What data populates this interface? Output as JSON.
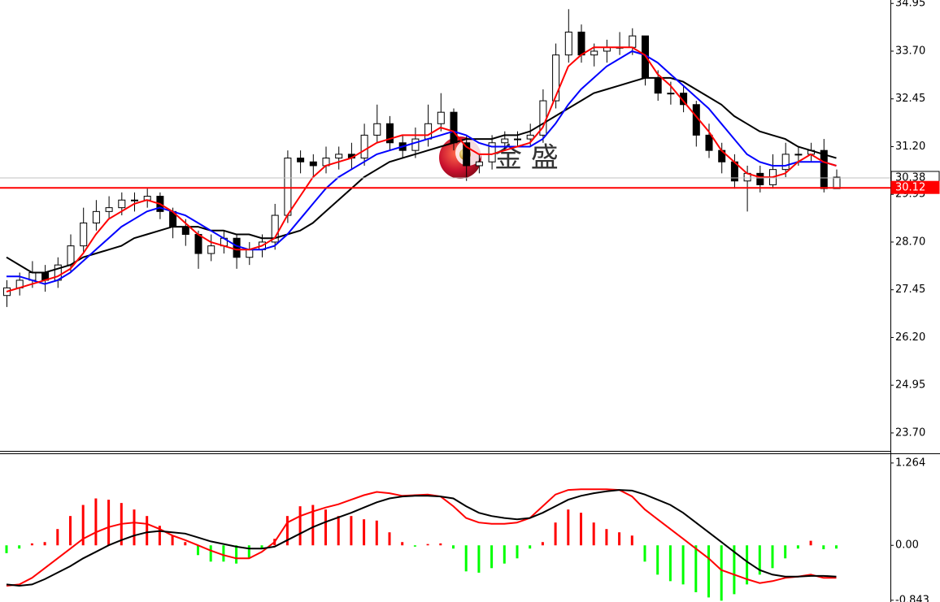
{
  "chart_data": [
    {
      "type": "candlestick",
      "watermark": "金 盛",
      "up_color": "#ffffff",
      "down_color": "#000000",
      "open": [
        27.3,
        27.5,
        27.7,
        27.9,
        27.7,
        28.1,
        28.6,
        29.2,
        29.5,
        29.6,
        29.8,
        29.8,
        29.9,
        29.5,
        29.1,
        28.9,
        28.4,
        28.6,
        28.8,
        28.3,
        28.5,
        28.7,
        29.4,
        30.9,
        30.8,
        30.7,
        30.9,
        31.0,
        30.9,
        31.5,
        31.8,
        31.3,
        31.1,
        31.4,
        31.8,
        32.1,
        31.3,
        30.7,
        30.8,
        31.3,
        31.4,
        31.4,
        31.5,
        32.4,
        33.6,
        34.2,
        33.6,
        33.7,
        33.8,
        33.8,
        34.1,
        33.0,
        32.6,
        32.6,
        32.3,
        31.5,
        31.1,
        30.8,
        30.3,
        30.5,
        30.2,
        30.6,
        31.0,
        31.0,
        31.1,
        30.1
      ],
      "high": [
        27.7,
        27.9,
        28.2,
        28.1,
        28.3,
        28.9,
        29.6,
        29.8,
        29.9,
        30.0,
        30.0,
        30.1,
        30.0,
        29.6,
        29.3,
        29.0,
        28.9,
        29.0,
        28.9,
        28.7,
        28.9,
        29.7,
        31.1,
        31.1,
        31.0,
        31.2,
        31.2,
        31.3,
        31.8,
        32.3,
        32.0,
        31.5,
        31.7,
        32.3,
        32.6,
        32.2,
        31.5,
        31.0,
        31.5,
        31.6,
        31.6,
        31.8,
        32.7,
        33.9,
        34.8,
        34.4,
        33.9,
        34.0,
        34.2,
        34.3,
        34.1,
        33.2,
        32.9,
        32.8,
        32.4,
        31.8,
        31.3,
        31.0,
        30.7,
        30.7,
        31.0,
        31.3,
        31.2,
        31.3,
        31.4,
        30.6
      ],
      "low": [
        27.0,
        27.3,
        27.5,
        27.4,
        27.5,
        27.9,
        28.4,
        29.0,
        29.3,
        29.4,
        29.5,
        29.6,
        29.3,
        28.8,
        28.6,
        28.0,
        28.2,
        28.4,
        28.0,
        28.1,
        28.3,
        28.5,
        29.2,
        30.5,
        30.4,
        30.5,
        30.6,
        30.6,
        30.7,
        31.3,
        31.1,
        30.9,
        30.9,
        31.2,
        31.6,
        31.1,
        30.3,
        30.5,
        30.6,
        31.1,
        31.2,
        31.2,
        31.3,
        32.2,
        33.4,
        33.4,
        33.3,
        33.4,
        33.6,
        33.6,
        32.8,
        32.4,
        32.3,
        32.1,
        31.2,
        30.9,
        30.5,
        30.1,
        29.5,
        30.0,
        30.1,
        30.4,
        30.7,
        30.8,
        30.0,
        30.1
      ],
      "close": [
        27.5,
        27.7,
        27.9,
        27.7,
        28.1,
        28.6,
        29.2,
        29.5,
        29.6,
        29.8,
        29.8,
        29.9,
        29.5,
        29.1,
        28.9,
        28.4,
        28.6,
        28.8,
        28.3,
        28.5,
        28.7,
        29.4,
        30.9,
        30.8,
        30.7,
        30.9,
        31.0,
        30.9,
        31.5,
        31.8,
        31.3,
        31.1,
        31.4,
        31.8,
        32.1,
        31.3,
        30.7,
        30.8,
        31.3,
        31.4,
        31.4,
        31.5,
        32.4,
        33.6,
        34.2,
        33.6,
        33.7,
        33.8,
        33.8,
        34.1,
        33.0,
        32.6,
        32.6,
        32.3,
        31.5,
        31.1,
        30.8,
        30.3,
        30.5,
        30.2,
        30.6,
        31.0,
        31.0,
        31.1,
        30.1,
        30.4
      ],
      "series": [
        {
          "color": "#000000",
          "values": [
            28.3,
            28.1,
            27.9,
            27.9,
            28.0,
            28.1,
            28.3,
            28.4,
            28.5,
            28.6,
            28.8,
            28.9,
            29.0,
            29.1,
            29.1,
            29.1,
            29.0,
            29.0,
            28.9,
            28.9,
            28.8,
            28.8,
            28.9,
            29.0,
            29.2,
            29.5,
            29.8,
            30.1,
            30.4,
            30.6,
            30.8,
            30.9,
            31.0,
            31.1,
            31.2,
            31.3,
            31.4,
            31.4,
            31.4,
            31.5,
            31.5,
            31.6,
            31.8,
            32.0,
            32.2,
            32.4,
            32.6,
            32.7,
            32.8,
            32.9,
            33.0,
            33.0,
            33.0,
            32.9,
            32.7,
            32.5,
            32.3,
            32.0,
            31.8,
            31.6,
            31.5,
            31.4,
            31.2,
            31.1,
            31.0,
            30.9
          ]
        },
        {
          "color": "#0000ff",
          "values": [
            27.8,
            27.8,
            27.7,
            27.6,
            27.7,
            27.9,
            28.2,
            28.5,
            28.8,
            29.1,
            29.3,
            29.5,
            29.6,
            29.5,
            29.4,
            29.2,
            29.0,
            28.8,
            28.6,
            28.5,
            28.5,
            28.6,
            28.9,
            29.3,
            29.7,
            30.1,
            30.4,
            30.6,
            30.8,
            31.0,
            31.1,
            31.2,
            31.3,
            31.4,
            31.5,
            31.6,
            31.5,
            31.3,
            31.2,
            31.2,
            31.2,
            31.2,
            31.4,
            31.8,
            32.3,
            32.7,
            33.0,
            33.3,
            33.5,
            33.7,
            33.6,
            33.4,
            33.1,
            32.8,
            32.5,
            32.2,
            31.8,
            31.4,
            31.0,
            30.8,
            30.7,
            30.7,
            30.8,
            30.8,
            30.8,
            30.7
          ]
        },
        {
          "color": "#ff0000",
          "values": [
            27.4,
            27.5,
            27.6,
            27.7,
            27.8,
            28.0,
            28.4,
            28.9,
            29.3,
            29.5,
            29.7,
            29.8,
            29.7,
            29.5,
            29.2,
            28.9,
            28.7,
            28.6,
            28.5,
            28.5,
            28.6,
            28.8,
            29.4,
            29.9,
            30.4,
            30.7,
            30.8,
            30.9,
            31.1,
            31.3,
            31.4,
            31.5,
            31.5,
            31.5,
            31.7,
            31.6,
            31.2,
            31.0,
            31.0,
            31.1,
            31.2,
            31.3,
            31.7,
            32.5,
            33.3,
            33.6,
            33.8,
            33.8,
            33.8,
            33.8,
            33.6,
            33.1,
            32.8,
            32.4,
            32.0,
            31.6,
            31.1,
            30.8,
            30.5,
            30.4,
            30.4,
            30.5,
            30.8,
            31.0,
            30.8,
            30.7
          ]
        }
      ],
      "ylim": [
        23.23,
        35.04
      ],
      "yticks": [
        34.95,
        {
          "value": 33.7,
          "label": "33.70"
        },
        32.45,
        {
          "value": 31.2,
          "label": "31.20"
        },
        29.95,
        {
          "value": 28.7,
          "label": "28.70"
        },
        27.45,
        {
          "value": 26.2,
          "label": "26.20"
        },
        24.95,
        {
          "value": 23.7,
          "label": "23.70"
        }
      ],
      "price_lines": [
        {
          "value": 30.38,
          "color": "#c0c0c0",
          "label_color": "#000000",
          "label_fill": "#ffffff"
        },
        {
          "value": 30.12,
          "color": "#ff0000",
          "label_color": "#ffffff",
          "label_fill": "#ff0000"
        }
      ]
    },
    {
      "type": "macd",
      "pos_color": "#ff0000",
      "neg_color": "#00ff00",
      "values": [
        -0.12,
        -0.05,
        0.03,
        0.05,
        0.25,
        0.45,
        0.62,
        0.72,
        0.7,
        0.65,
        0.55,
        0.45,
        0.3,
        0.15,
        0.05,
        -0.15,
        -0.25,
        -0.25,
        -0.28,
        -0.2,
        -0.05,
        0.1,
        0.45,
        0.6,
        0.62,
        0.55,
        0.45,
        0.45,
        0.4,
        0.38,
        0.2,
        0.05,
        -0.02,
        0.02,
        0.03,
        -0.05,
        -0.4,
        -0.42,
        -0.35,
        -0.28,
        -0.2,
        -0.05,
        0.05,
        0.35,
        0.55,
        0.5,
        0.35,
        0.25,
        0.2,
        0.15,
        -0.25,
        -0.45,
        -0.55,
        -0.6,
        -0.72,
        -0.8,
        -0.85,
        -0.75,
        -0.6,
        -0.45,
        -0.35,
        -0.2,
        -0.05,
        0.07,
        -0.06,
        -0.05
      ],
      "series": [
        {
          "color": "#ff0000",
          "values": [
            -0.62,
            -0.6,
            -0.5,
            -0.35,
            -0.2,
            -0.05,
            0.1,
            0.2,
            0.28,
            0.33,
            0.35,
            0.33,
            0.25,
            0.15,
            0.08,
            0.0,
            -0.08,
            -0.15,
            -0.2,
            -0.2,
            -0.1,
            0.05,
            0.35,
            0.45,
            0.52,
            0.58,
            0.63,
            0.7,
            0.77,
            0.82,
            0.8,
            0.76,
            0.77,
            0.78,
            0.75,
            0.6,
            0.42,
            0.35,
            0.33,
            0.33,
            0.35,
            0.42,
            0.6,
            0.78,
            0.85,
            0.86,
            0.86,
            0.86,
            0.85,
            0.75,
            0.55,
            0.4,
            0.25,
            0.1,
            -0.05,
            -0.2,
            -0.38,
            -0.45,
            -0.52,
            -0.58,
            -0.55,
            -0.5,
            -0.48,
            -0.45,
            -0.5,
            -0.5
          ]
        },
        {
          "color": "#000000",
          "values": [
            -0.6,
            -0.62,
            -0.6,
            -0.52,
            -0.42,
            -0.32,
            -0.2,
            -0.1,
            0.0,
            0.08,
            0.15,
            0.2,
            0.22,
            0.2,
            0.18,
            0.12,
            0.06,
            0.02,
            -0.02,
            -0.05,
            -0.05,
            -0.02,
            0.08,
            0.18,
            0.28,
            0.36,
            0.43,
            0.5,
            0.58,
            0.66,
            0.72,
            0.75,
            0.76,
            0.76,
            0.75,
            0.72,
            0.6,
            0.5,
            0.45,
            0.42,
            0.4,
            0.42,
            0.5,
            0.6,
            0.7,
            0.76,
            0.8,
            0.83,
            0.85,
            0.84,
            0.78,
            0.7,
            0.62,
            0.5,
            0.35,
            0.2,
            0.05,
            -0.1,
            -0.25,
            -0.38,
            -0.45,
            -0.48,
            -0.48,
            -0.47,
            -0.47,
            -0.48
          ]
        }
      ],
      "ylim": [
        -0.87,
        1.4
      ],
      "yticks": [
        1.264,
        {
          "value": 0,
          "label": "0.00"
        },
        -0.843
      ]
    }
  ]
}
